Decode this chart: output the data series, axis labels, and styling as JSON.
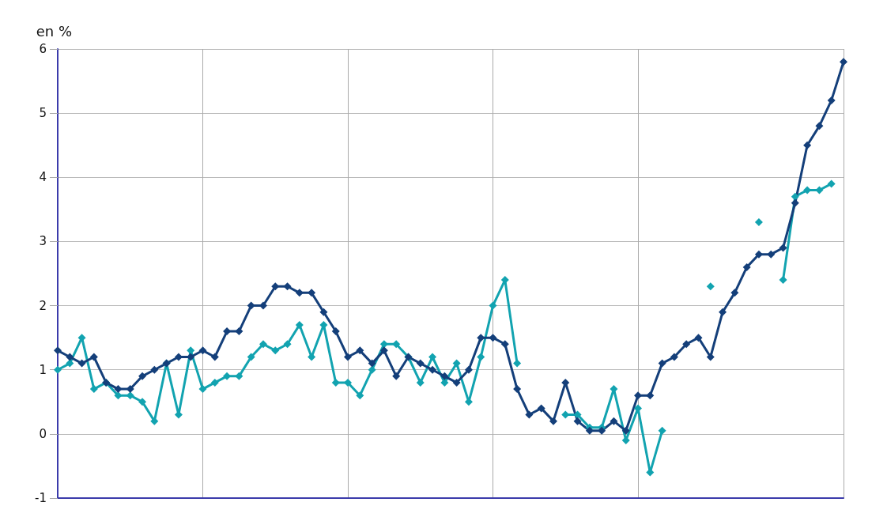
{
  "chart_data": {
    "type": "line",
    "ylabel": "en %",
    "categories": [
      null,
      null,
      null,
      null,
      null,
      null,
      null,
      null,
      null,
      null,
      null,
      null,
      null,
      null,
      null,
      null,
      null,
      null,
      null,
      null,
      null,
      null,
      null,
      null,
      null,
      null,
      null,
      null,
      null,
      null,
      null,
      null,
      null,
      null,
      null,
      null,
      null,
      null,
      null,
      null,
      null,
      null,
      null,
      null,
      null,
      null,
      null,
      null,
      null,
      null,
      null,
      null,
      null,
      null,
      null,
      null,
      null,
      null,
      null,
      null,
      null,
      null,
      null,
      null,
      null,
      null
    ],
    "series": [
      {
        "color": "#12a3b0",
        "values": [
          1.0,
          1.1,
          1.5,
          0.7,
          0.8,
          0.6,
          0.6,
          0.5,
          0.2,
          1.1,
          0.3,
          1.3,
          0.7,
          0.8,
          0.9,
          0.9,
          1.2,
          1.4,
          1.3,
          1.4,
          1.7,
          1.2,
          1.7,
          0.8,
          0.8,
          0.6,
          1.0,
          1.4,
          1.4,
          1.2,
          0.8,
          1.2,
          0.8,
          1.1,
          0.5,
          1.2,
          2.0,
          2.4,
          1.1,
          null,
          null,
          null,
          0.3,
          0.3,
          0.1,
          0.1,
          0.7,
          -0.1,
          0.4,
          -0.6,
          0.05,
          null,
          null,
          null,
          2.3,
          null,
          null,
          null,
          3.3,
          null,
          2.4,
          3.7,
          3.8,
          3.8,
          3.9,
          null
        ]
      },
      {
        "color": "#143f7a",
        "values": [
          1.3,
          1.2,
          1.1,
          1.2,
          0.8,
          0.7,
          0.7,
          0.9,
          1.0,
          1.1,
          1.2,
          1.2,
          1.3,
          1.2,
          1.6,
          1.6,
          2.0,
          2.0,
          2.3,
          2.3,
          2.2,
          2.2,
          1.9,
          1.6,
          1.2,
          1.3,
          1.1,
          1.3,
          0.9,
          1.2,
          1.1,
          1.0,
          0.9,
          0.8,
          1.0,
          1.5,
          1.5,
          1.4,
          0.7,
          0.3,
          0.4,
          0.2,
          0.8,
          0.2,
          0.05,
          0.05,
          0.2,
          0.05,
          0.6,
          0.6,
          1.1,
          1.2,
          1.4,
          1.5,
          1.2,
          1.9,
          2.2,
          2.6,
          2.8,
          2.8,
          2.9,
          3.6,
          4.5,
          4.8,
          5.2,
          5.8
        ]
      }
    ],
    "ylim": [
      -1,
      6
    ],
    "yticks": [
      -1,
      0,
      1,
      2,
      3,
      4,
      5,
      6
    ],
    "grid": true,
    "marker": "diamond",
    "line_style": "solid",
    "tick_labels": "y"
  }
}
